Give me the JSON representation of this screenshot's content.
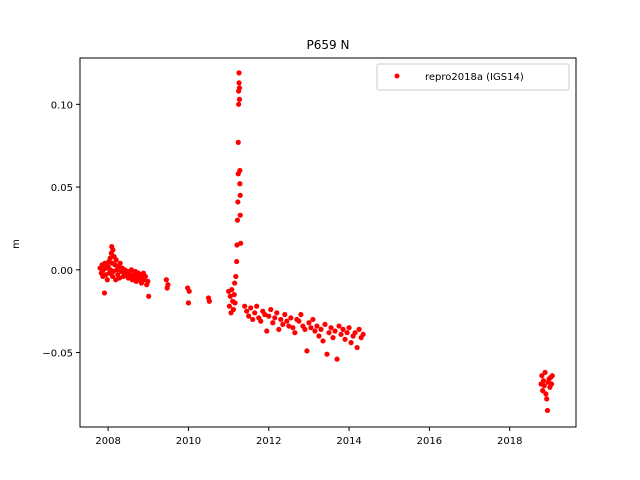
{
  "chart_data": {
    "type": "scatter",
    "title": "P659 N",
    "xlabel": "",
    "ylabel": "m",
    "xlim": [
      2007.3,
      2019.65
    ],
    "ylim": [
      -0.095,
      0.128
    ],
    "xticks": [
      2008,
      2010,
      2012,
      2014,
      2016,
      2018
    ],
    "xtick_labels": [
      "2008",
      "2010",
      "2012",
      "2014",
      "2016",
      "2018"
    ],
    "yticks": [
      -0.05,
      0.0,
      0.05,
      0.1
    ],
    "ytick_labels": [
      "−0.05",
      "0.00",
      "0.05",
      "0.10"
    ],
    "grid": false,
    "legend_position": "top-right",
    "series": [
      {
        "name": "repro2018a (IGS14)",
        "color": "#ff0000",
        "marker": "dot",
        "points": [
          [
            2007.8,
            0.001
          ],
          [
            2007.83,
            -0.002
          ],
          [
            2007.85,
            0.003
          ],
          [
            2007.87,
            -0.004
          ],
          [
            2007.88,
            0.0
          ],
          [
            2007.9,
            0.002
          ],
          [
            2007.91,
            -0.014
          ],
          [
            2007.92,
            0.004
          ],
          [
            2007.94,
            -0.003
          ],
          [
            2007.96,
            0.001
          ],
          [
            2007.98,
            -0.006
          ],
          [
            2008.0,
            0.002
          ],
          [
            2008.02,
            0.005
          ],
          [
            2008.03,
            -0.002
          ],
          [
            2008.05,
            0.007
          ],
          [
            2008.06,
            0.0
          ],
          [
            2008.08,
            0.01
          ],
          [
            2008.09,
            0.014
          ],
          [
            2008.1,
            0.004
          ],
          [
            2008.11,
            -0.004
          ],
          [
            2008.12,
            0.012
          ],
          [
            2008.13,
            -0.001
          ],
          [
            2008.15,
            0.008
          ],
          [
            2008.17,
            0.003
          ],
          [
            2008.19,
            -0.006
          ],
          [
            2008.2,
            0.006
          ],
          [
            2008.22,
            0.0
          ],
          [
            2008.24,
            -0.003
          ],
          [
            2008.26,
            0.002
          ],
          [
            2008.28,
            -0.005
          ],
          [
            2008.3,
            0.004
          ],
          [
            2008.33,
            -0.001
          ],
          [
            2008.35,
            0.001
          ],
          [
            2008.38,
            -0.004
          ],
          [
            2008.4,
            -0.002
          ],
          [
            2008.42,
            0.0
          ],
          [
            2008.45,
            -0.003
          ],
          [
            2008.48,
            -0.001
          ],
          [
            2008.5,
            -0.005
          ],
          [
            2008.53,
            -0.002
          ],
          [
            2008.55,
            -0.004
          ],
          [
            2008.58,
            0.0
          ],
          [
            2008.6,
            -0.006
          ],
          [
            2008.63,
            -0.003
          ],
          [
            2008.65,
            -0.005
          ],
          [
            2008.68,
            -0.001
          ],
          [
            2008.7,
            -0.007
          ],
          [
            2008.72,
            -0.004
          ],
          [
            2008.75,
            -0.002
          ],
          [
            2008.78,
            -0.006
          ],
          [
            2008.8,
            -0.003
          ],
          [
            2008.83,
            -0.008
          ],
          [
            2008.85,
            -0.005
          ],
          [
            2008.88,
            -0.002
          ],
          [
            2008.9,
            -0.006
          ],
          [
            2008.93,
            -0.004
          ],
          [
            2008.96,
            -0.009
          ],
          [
            2008.99,
            -0.007
          ],
          [
            2009.01,
            -0.016
          ],
          [
            2009.45,
            -0.006
          ],
          [
            2009.47,
            -0.011
          ],
          [
            2009.49,
            -0.009
          ],
          [
            2009.98,
            -0.011
          ],
          [
            2010.0,
            -0.02
          ],
          [
            2010.02,
            -0.013
          ],
          [
            2010.5,
            -0.017
          ],
          [
            2010.52,
            -0.019
          ],
          [
            2011.0,
            -0.013
          ],
          [
            2011.02,
            -0.022
          ],
          [
            2011.04,
            -0.016
          ],
          [
            2011.06,
            -0.026
          ],
          [
            2011.08,
            -0.012
          ],
          [
            2011.1,
            -0.019
          ],
          [
            2011.12,
            -0.024
          ],
          [
            2011.14,
            -0.015
          ],
          [
            2011.15,
            -0.008
          ],
          [
            2011.16,
            -0.02
          ],
          [
            2011.18,
            -0.004
          ],
          [
            2011.2,
            0.005
          ],
          [
            2011.21,
            0.015
          ],
          [
            2011.22,
            0.03
          ],
          [
            2011.23,
            0.041
          ],
          [
            2011.24,
            0.058
          ],
          [
            2011.24,
            0.077
          ],
          [
            2011.25,
            0.1
          ],
          [
            2011.25,
            0.108
          ],
          [
            2011.26,
            0.113
          ],
          [
            2011.26,
            0.119
          ],
          [
            2011.27,
            0.11
          ],
          [
            2011.27,
            0.103
          ],
          [
            2011.28,
            0.06
          ],
          [
            2011.28,
            0.052
          ],
          [
            2011.29,
            0.045
          ],
          [
            2011.29,
            0.033
          ],
          [
            2011.3,
            0.016
          ],
          [
            2011.4,
            -0.022
          ],
          [
            2011.45,
            -0.025
          ],
          [
            2011.5,
            -0.028
          ],
          [
            2011.55,
            -0.023
          ],
          [
            2011.6,
            -0.03
          ],
          [
            2011.65,
            -0.026
          ],
          [
            2011.7,
            -0.022
          ],
          [
            2011.75,
            -0.029
          ],
          [
            2011.8,
            -0.031
          ],
          [
            2011.85,
            -0.025
          ],
          [
            2011.9,
            -0.027
          ],
          [
            2011.95,
            -0.037
          ],
          [
            2012.0,
            -0.028
          ],
          [
            2012.05,
            -0.024
          ],
          [
            2012.1,
            -0.032
          ],
          [
            2012.15,
            -0.029
          ],
          [
            2012.2,
            -0.026
          ],
          [
            2012.25,
            -0.036
          ],
          [
            2012.3,
            -0.03
          ],
          [
            2012.35,
            -0.033
          ],
          [
            2012.4,
            -0.027
          ],
          [
            2012.45,
            -0.031
          ],
          [
            2012.5,
            -0.034
          ],
          [
            2012.55,
            -0.029
          ],
          [
            2012.6,
            -0.035
          ],
          [
            2012.65,
            -0.038
          ],
          [
            2012.7,
            -0.03
          ],
          [
            2012.75,
            -0.031
          ],
          [
            2012.8,
            -0.027
          ],
          [
            2012.85,
            -0.034
          ],
          [
            2012.9,
            -0.036
          ],
          [
            2012.95,
            -0.049
          ],
          [
            2013.0,
            -0.032
          ],
          [
            2013.05,
            -0.035
          ],
          [
            2013.1,
            -0.03
          ],
          [
            2013.15,
            -0.037
          ],
          [
            2013.2,
            -0.034
          ],
          [
            2013.25,
            -0.04
          ],
          [
            2013.3,
            -0.036
          ],
          [
            2013.35,
            -0.043
          ],
          [
            2013.4,
            -0.033
          ],
          [
            2013.45,
            -0.051
          ],
          [
            2013.5,
            -0.038
          ],
          [
            2013.55,
            -0.035
          ],
          [
            2013.6,
            -0.041
          ],
          [
            2013.65,
            -0.037
          ],
          [
            2013.7,
            -0.054
          ],
          [
            2013.75,
            -0.034
          ],
          [
            2013.8,
            -0.039
          ],
          [
            2013.85,
            -0.036
          ],
          [
            2013.9,
            -0.042
          ],
          [
            2013.95,
            -0.038
          ],
          [
            2014.0,
            -0.035
          ],
          [
            2014.05,
            -0.044
          ],
          [
            2014.1,
            -0.04
          ],
          [
            2014.15,
            -0.038
          ],
          [
            2014.2,
            -0.047
          ],
          [
            2014.25,
            -0.036
          ],
          [
            2014.3,
            -0.041
          ],
          [
            2014.35,
            -0.039
          ],
          [
            2018.78,
            -0.069
          ],
          [
            2018.8,
            -0.064
          ],
          [
            2018.82,
            -0.073
          ],
          [
            2018.84,
            -0.067
          ],
          [
            2018.86,
            -0.07
          ],
          [
            2018.88,
            -0.062
          ],
          [
            2018.9,
            -0.075
          ],
          [
            2018.92,
            -0.078
          ],
          [
            2018.94,
            -0.085
          ],
          [
            2018.96,
            -0.068
          ],
          [
            2018.98,
            -0.066
          ],
          [
            2019.0,
            -0.071
          ],
          [
            2019.02,
            -0.065
          ],
          [
            2019.04,
            -0.069
          ],
          [
            2019.06,
            -0.064
          ]
        ]
      }
    ]
  }
}
